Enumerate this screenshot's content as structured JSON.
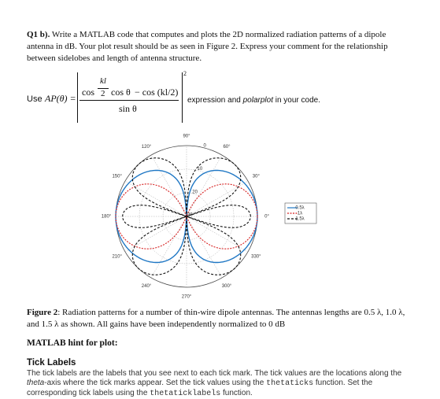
{
  "question": {
    "label": "Q1 b).",
    "text": "Write a MATLAB code that computes and plots the 2D normalized radiation patterns of a dipole antenna in dB. Your plot result should be as seen in Figure 2. Express your comment for the relationship between sidelobes and length of antenna structure."
  },
  "formula": {
    "use": "Use",
    "lhs": "AP(θ) =",
    "cos1": "cos",
    "num": "kl",
    "den": "2",
    "cos2": "cos θ",
    "minus": "− cos (kl/2)",
    "power": "2",
    "denominator": "sin θ",
    "after": "expression and",
    "after_italic": "polarplot",
    "after_end": "in your code."
  },
  "figure": {
    "angle_labels": [
      "0°",
      "30°",
      "60°",
      "90°",
      "120°",
      "150°",
      "180°",
      "210°",
      "240°",
      "270°",
      "300°",
      "330°"
    ],
    "radial_labels": [
      "0",
      "10",
      "20",
      "30"
    ],
    "legend": [
      "0.5λ",
      "1λ",
      "1.5λ"
    ]
  },
  "caption": {
    "label": "Figure 2",
    "text": ": Radiation patterns for a number of thin-wire dipole antennas. The antennas lengths are 0.5 λ, 1.0 λ, and 1.5 λ as shown. All gains have been independently normalized to 0 dB"
  },
  "hint_title": "MATLAB hint for plot:",
  "section": {
    "heading": "Tick Labels",
    "parts": [
      "The tick labels are the labels that you see next to each tick mark. The tick values are the locations along the ",
      "theta",
      "-axis where the tick marks appear. Set the tick values using the ",
      "thetaticks",
      " function. Set the corresponding tick labels using the ",
      "thetaticklabels",
      " function."
    ]
  }
}
